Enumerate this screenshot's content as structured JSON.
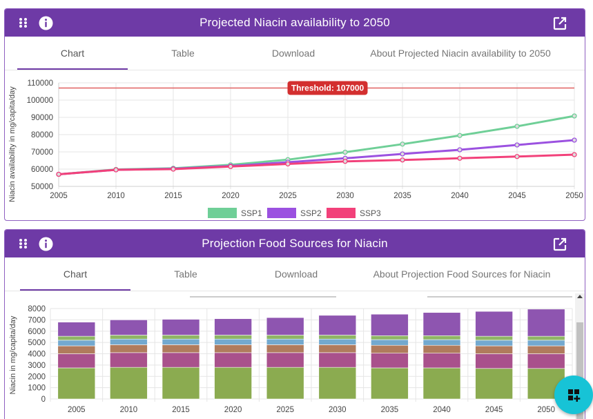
{
  "panel1": {
    "title": "Projected Niacin availability to 2050",
    "tabs": [
      {
        "label": "Chart",
        "active": true
      },
      {
        "label": "Table",
        "active": false
      },
      {
        "label": "Download",
        "active": false
      },
      {
        "label": "About Projected Niacin availability to 2050",
        "active": false
      }
    ]
  },
  "panel2": {
    "title": "Projection Food Sources for Niacin",
    "tabs": [
      {
        "label": "Chart",
        "active": true
      },
      {
        "label": "Table",
        "active": false
      },
      {
        "label": "Download",
        "active": false
      },
      {
        "label": "About Projection Food Sources for Niacin",
        "active": false
      }
    ]
  },
  "icons": {
    "drag": "drag-handle-icon",
    "info": "info-icon",
    "open": "open-in-new-icon",
    "fab": "add-widget-icon"
  },
  "colors": {
    "header": "#6e3aa6",
    "fab": "#17c3d6",
    "threshold": "#d32f2f"
  },
  "chart_data": [
    {
      "type": "line",
      "ylabel": "Niacin availability in mg/capita/day",
      "x": [
        2005,
        2010,
        2015,
        2020,
        2025,
        2030,
        2035,
        2040,
        2045,
        2050
      ],
      "ylim": [
        50000,
        110000
      ],
      "yticks": [
        50000,
        60000,
        70000,
        80000,
        90000,
        100000,
        110000
      ],
      "grid": true,
      "legend_position": "bottom",
      "threshold": {
        "value": 107000,
        "label": "Threshold: 107000"
      },
      "series": [
        {
          "name": "SSP1",
          "color": "#6fcf97",
          "values": [
            57000,
            59800,
            60500,
            62500,
            65500,
            69800,
            74500,
            79500,
            84800,
            90800
          ]
        },
        {
          "name": "SSP2",
          "color": "#9b51e0",
          "values": [
            57000,
            59600,
            60200,
            61800,
            64000,
            66300,
            68800,
            71200,
            74000,
            76800
          ]
        },
        {
          "name": "SSP3",
          "color": "#f2417a",
          "values": [
            57000,
            59600,
            60000,
            61500,
            63000,
            64500,
            65300,
            66300,
            67300,
            68400
          ]
        }
      ]
    },
    {
      "type": "bar",
      "stacked": true,
      "ylabel": "Niacin in mg/capita/day",
      "categories": [
        "2005",
        "2010",
        "2015",
        "2020",
        "2025",
        "2030",
        "2035",
        "2040",
        "2045",
        "2050"
      ],
      "ylim": [
        0,
        8000
      ],
      "yticks": [
        0,
        1000,
        2000,
        3000,
        4000,
        5000,
        6000,
        7000,
        8000
      ],
      "grid": true,
      "series": [
        {
          "color": "#8bab50",
          "values": [
            2750,
            2800,
            2800,
            2800,
            2800,
            2800,
            2750,
            2750,
            2700,
            2700
          ]
        },
        {
          "color": "#a9518c",
          "values": [
            1250,
            1300,
            1300,
            1300,
            1300,
            1300,
            1300,
            1300,
            1300,
            1300
          ]
        },
        {
          "color": "#b07b5d",
          "values": [
            700,
            700,
            700,
            700,
            700,
            700,
            700,
            700,
            700,
            700
          ]
        },
        {
          "color": "#73a9cf",
          "values": [
            500,
            500,
            500,
            500,
            500,
            500,
            500,
            500,
            500,
            500
          ]
        },
        {
          "color": "#8fb564",
          "values": [
            350,
            350,
            350,
            350,
            350,
            350,
            350,
            350,
            350,
            350
          ]
        },
        {
          "color": "#8e55b0",
          "values": [
            1250,
            1350,
            1400,
            1450,
            1550,
            1750,
            1900,
            2050,
            2200,
            2400
          ]
        }
      ]
    }
  ]
}
